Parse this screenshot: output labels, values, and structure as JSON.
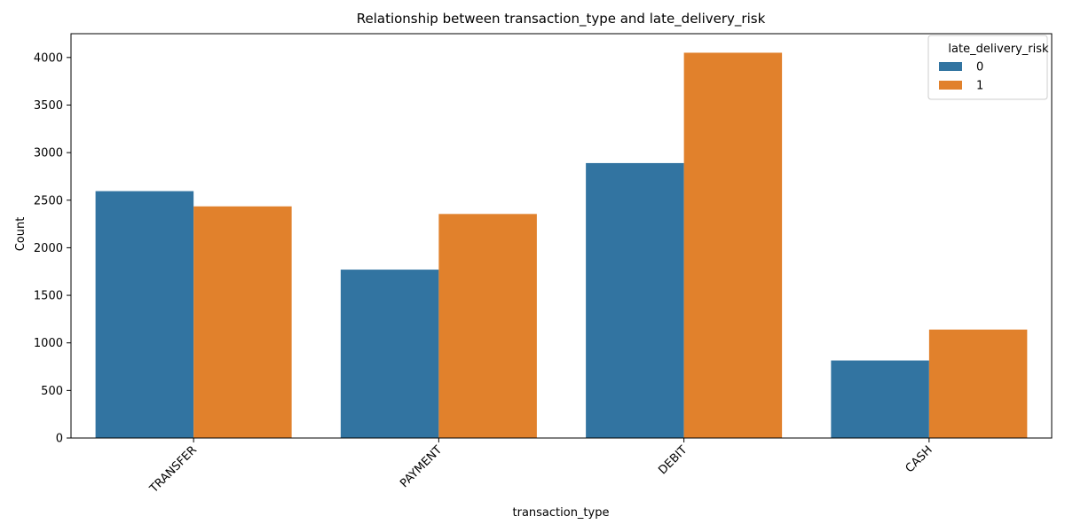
{
  "chart_data": {
    "type": "bar",
    "title": "Relationship between transaction_type and late_delivery_risk",
    "xlabel": "transaction_type",
    "ylabel": "Count",
    "categories": [
      "TRANSFER",
      "PAYMENT",
      "DEBIT",
      "CASH"
    ],
    "series": [
      {
        "name": "0",
        "color": "#3274a1",
        "values": [
          2595,
          1770,
          2890,
          815
        ]
      },
      {
        "name": "1",
        "color": "#e1812c",
        "values": [
          2435,
          2355,
          4050,
          1140
        ]
      }
    ],
    "ylim": [
      0,
      4250
    ],
    "yticks": [
      0,
      500,
      1000,
      1500,
      2000,
      2500,
      3000,
      3500,
      4000
    ],
    "legend": {
      "title": "late_delivery_risk",
      "position": "top-right"
    },
    "grid": false
  }
}
